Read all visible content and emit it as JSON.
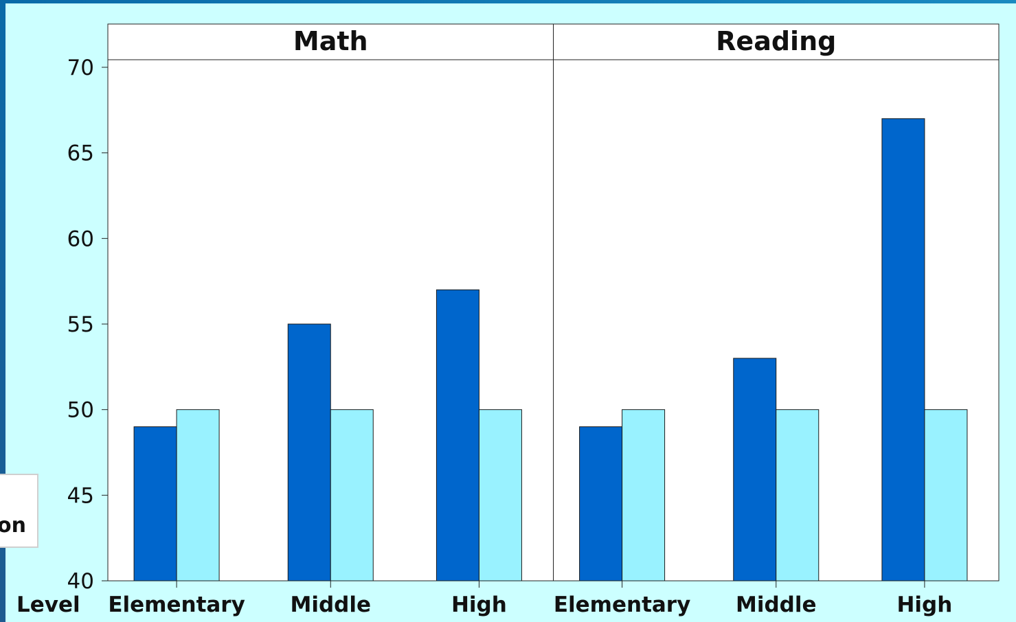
{
  "chart_data": {
    "type": "bar",
    "panels": [
      {
        "name": "Math",
        "categories": [
          "Elementary",
          "Middle",
          "High"
        ],
        "series": [
          {
            "values": [
              49,
              55,
              57
            ],
            "color": "#0066cc"
          },
          {
            "values": [
              50,
              50,
              50
            ],
            "color": "#99f2ff"
          }
        ]
      },
      {
        "name": "Reading",
        "categories": [
          "Elementary",
          "Middle",
          "High"
        ],
        "series": [
          {
            "values": [
              49,
              53,
              67
            ],
            "color": "#0066cc"
          },
          {
            "values": [
              50,
              50,
              50
            ],
            "color": "#99f2ff"
          }
        ]
      }
    ],
    "ylim": [
      40,
      70
    ],
    "yticks": [
      40,
      45,
      50,
      55,
      60,
      65,
      70
    ],
    "xlabel": "Level",
    "legend_fragment_text": "on",
    "grid": false
  }
}
